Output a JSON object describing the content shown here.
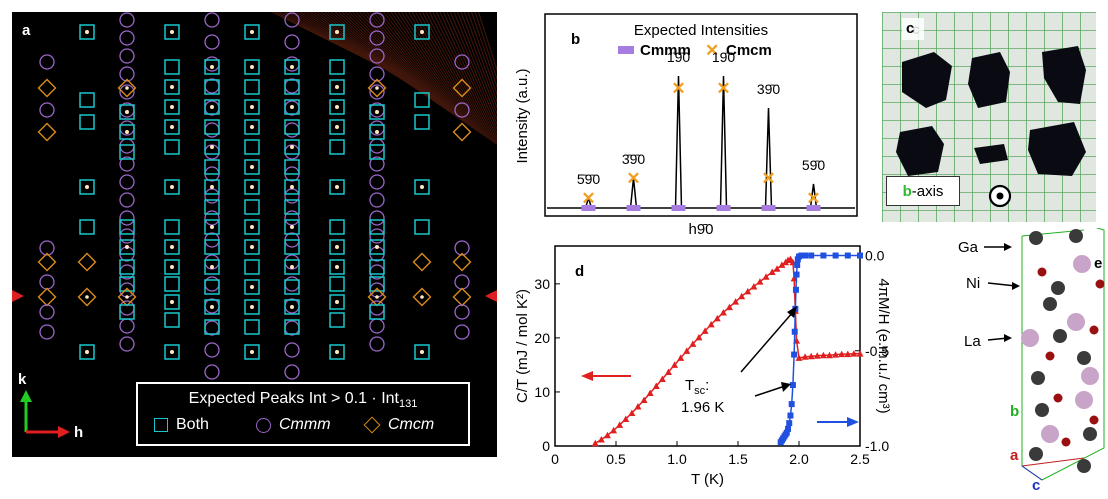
{
  "panel_a": {
    "label": "a",
    "legend": {
      "title": "Expected Peaks Int > 0.1 · Int",
      "title_sub": "131",
      "items": [
        {
          "symbol": "square",
          "label": "Both",
          "italic": false
        },
        {
          "symbol": "circle",
          "label": "Cmmm",
          "italic": true
        },
        {
          "symbol": "diamond",
          "label": "Cmcm",
          "italic": true
        }
      ]
    },
    "axes": {
      "k": "k",
      "h": "h"
    },
    "colors": {
      "square": "#19c8cc",
      "circle": "#9a66c8",
      "diamond": "#d98b1a",
      "arrow_k": "#22cc22",
      "arrow_h": "#e02020",
      "marker": "#e02020"
    }
  },
  "panel_b": {
    "label": "b",
    "legend_title": "Expected Intensities",
    "legend_items": [
      {
        "symbol": "bar",
        "label": "Cmmm",
        "color": "#a77ce0"
      },
      {
        "symbol": "x",
        "label": "Cmcm",
        "color": "#f0a020"
      }
    ],
    "ylabel": "Intensity (a.u.)",
    "xlabel": "h9̄0",
    "peak_labels": [
      "5̄9̄0",
      "3̄9̄0",
      "1̄9̄0",
      "19̄0",
      "39̄0",
      "59̄0"
    ]
  },
  "panel_c": {
    "label": "c",
    "axis_label_prefix": "b",
    "axis_label_suffix": "-axis",
    "axis_color": "#2eb82e"
  },
  "panel_e": {
    "label": "e",
    "atoms": [
      "Ga",
      "Ni",
      "La"
    ],
    "axes": [
      {
        "name": "b",
        "color": "#22b022"
      },
      {
        "name": "a",
        "color": "#c02020"
      },
      {
        "name": "c",
        "color": "#2030c0"
      }
    ]
  },
  "chart_data": [
    {
      "type": "line",
      "panel": "b",
      "title": "Expected Intensities",
      "xlabel": "h9̄0",
      "ylabel": "Intensity (a.u.)",
      "peaks": [
        {
          "label": "5̄9̄0",
          "h": -5,
          "height": 0.05
        },
        {
          "label": "3̄9̄0",
          "h": -3,
          "height": 0.15
        },
        {
          "label": "1̄9̄0",
          "h": -1,
          "height": 0.66
        },
        {
          "label": "19̄0",
          "h": 1,
          "height": 0.66
        },
        {
          "label": "39̄0",
          "h": 3,
          "height": 0.5
        },
        {
          "label": "59̄0",
          "h": 5,
          "height": 0.12
        }
      ],
      "cmcm_expected": [
        0.05,
        0.15,
        0.6,
        0.6,
        0.15,
        0.05
      ],
      "cmmm_expected": [
        0,
        0,
        0,
        0,
        0,
        0
      ]
    },
    {
      "type": "line",
      "panel": "d",
      "xlabel": "T (K)",
      "ylabel_left": "C/T (mJ / mol K²)",
      "ylabel_right": "4πM/H (e.m.u./ cm³)",
      "x_ticks": [
        "0",
        "0.5",
        "1.0",
        "1.5",
        "2.0",
        "2.5"
      ],
      "y_left_ticks": [
        "0",
        "10",
        "20",
        "30"
      ],
      "y_right_ticks": [
        "0.0",
        "-0.5",
        "-1.0"
      ],
      "xlim": [
        0,
        2.5
      ],
      "ylim_left": [
        0,
        37
      ],
      "ylim_right": [
        -1.0,
        0.05
      ],
      "annotation": {
        "text": "T",
        "sub": "sc",
        "suffix": ":",
        "value": "1.96 K"
      },
      "series": [
        {
          "name": "C/T",
          "axis": "left",
          "color": "#e02020",
          "marker": "triangle",
          "x": [
            0.33,
            0.38,
            0.43,
            0.48,
            0.53,
            0.58,
            0.63,
            0.68,
            0.73,
            0.78,
            0.83,
            0.88,
            0.93,
            0.98,
            1.03,
            1.08,
            1.13,
            1.18,
            1.23,
            1.28,
            1.33,
            1.38,
            1.43,
            1.48,
            1.53,
            1.58,
            1.63,
            1.68,
            1.73,
            1.78,
            1.82,
            1.86,
            1.89,
            1.91,
            1.93,
            1.95,
            1.96,
            1.97,
            1.98,
            2.0,
            2.05,
            2.1,
            2.15,
            2.2,
            2.25,
            2.3,
            2.35,
            2.4,
            2.45,
            2.5
          ],
          "y": [
            0.5,
            1.2,
            2.0,
            2.9,
            3.9,
            5.0,
            6.1,
            7.3,
            8.5,
            9.8,
            11.1,
            12.4,
            13.7,
            15.0,
            16.3,
            17.6,
            18.9,
            20.1,
            21.3,
            22.5,
            23.6,
            24.7,
            25.7,
            26.7,
            27.7,
            28.6,
            29.5,
            30.4,
            31.3,
            32.2,
            32.8,
            33.5,
            34.0,
            34.4,
            34.6,
            34.0,
            31.0,
            25.0,
            19.5,
            16.3,
            16.5,
            16.6,
            16.7,
            16.8,
            16.8,
            16.9,
            17.0,
            17.0,
            17.1,
            17.1
          ]
        },
        {
          "name": "4πM/H",
          "axis": "right",
          "color": "#2050e0",
          "marker": "square",
          "x": [
            1.85,
            1.86,
            1.87,
            1.88,
            1.89,
            1.9,
            1.91,
            1.92,
            1.93,
            1.94,
            1.95,
            1.96,
            1.965,
            1.97,
            1.975,
            1.98,
            1.985,
            1.99,
            2.0,
            2.02,
            2.05,
            2.1,
            2.2,
            2.3,
            2.4,
            2.5
          ],
          "y": [
            -0.98,
            -0.97,
            -0.96,
            -0.95,
            -0.94,
            -0.93,
            -0.91,
            -0.88,
            -0.84,
            -0.78,
            -0.68,
            -0.52,
            -0.4,
            -0.28,
            -0.18,
            -0.1,
            -0.05,
            -0.02,
            -0.005,
            0.0,
            0.0,
            0.0,
            0.0,
            0.0,
            0.0,
            0.0
          ]
        }
      ]
    }
  ]
}
